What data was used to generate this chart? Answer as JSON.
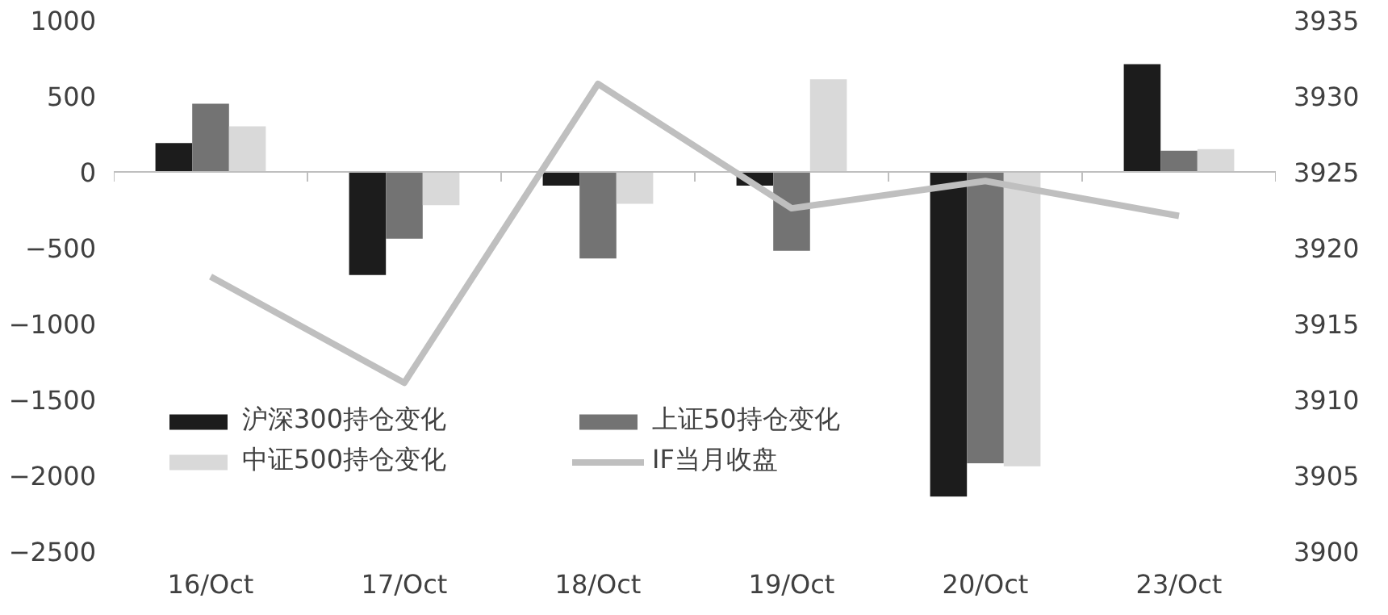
{
  "chart_data": {
    "type": "bar",
    "categories": [
      "16/Oct",
      "17/Oct",
      "18/Oct",
      "19/Oct",
      "20/Oct",
      "23/Oct"
    ],
    "series": [
      {
        "name": "沪深300持仓变化",
        "color": "#1c1c1c",
        "values": [
          190,
          -680,
          -90,
          -90,
          -2140,
          710
        ]
      },
      {
        "name": "上证50持仓变化",
        "color": "#737373",
        "values": [
          450,
          -440,
          -570,
          -520,
          -1920,
          140
        ]
      },
      {
        "name": "中证500持仓变化",
        "color": "#d9d9d9",
        "values": [
          300,
          -220,
          -210,
          610,
          -1940,
          150
        ]
      },
      {
        "name": "IF当月收盘",
        "type": "line",
        "axis": "y2",
        "color": "#bfbfbf",
        "values": [
          3918.1,
          3911.1,
          3930.8,
          3922.6,
          3924.4,
          3922.1
        ]
      }
    ],
    "ylim": [
      -2500,
      1000
    ],
    "yticks": [
      -2500,
      -2000,
      -1500,
      -1000,
      -500,
      0,
      500,
      1000
    ],
    "y2lim": [
      3900,
      3935
    ],
    "y2ticks": [
      3900,
      3905,
      3910,
      3915,
      3920,
      3925,
      3930,
      3935
    ],
    "legend": "bottom left",
    "marker": "none",
    "line_style": "solid"
  }
}
